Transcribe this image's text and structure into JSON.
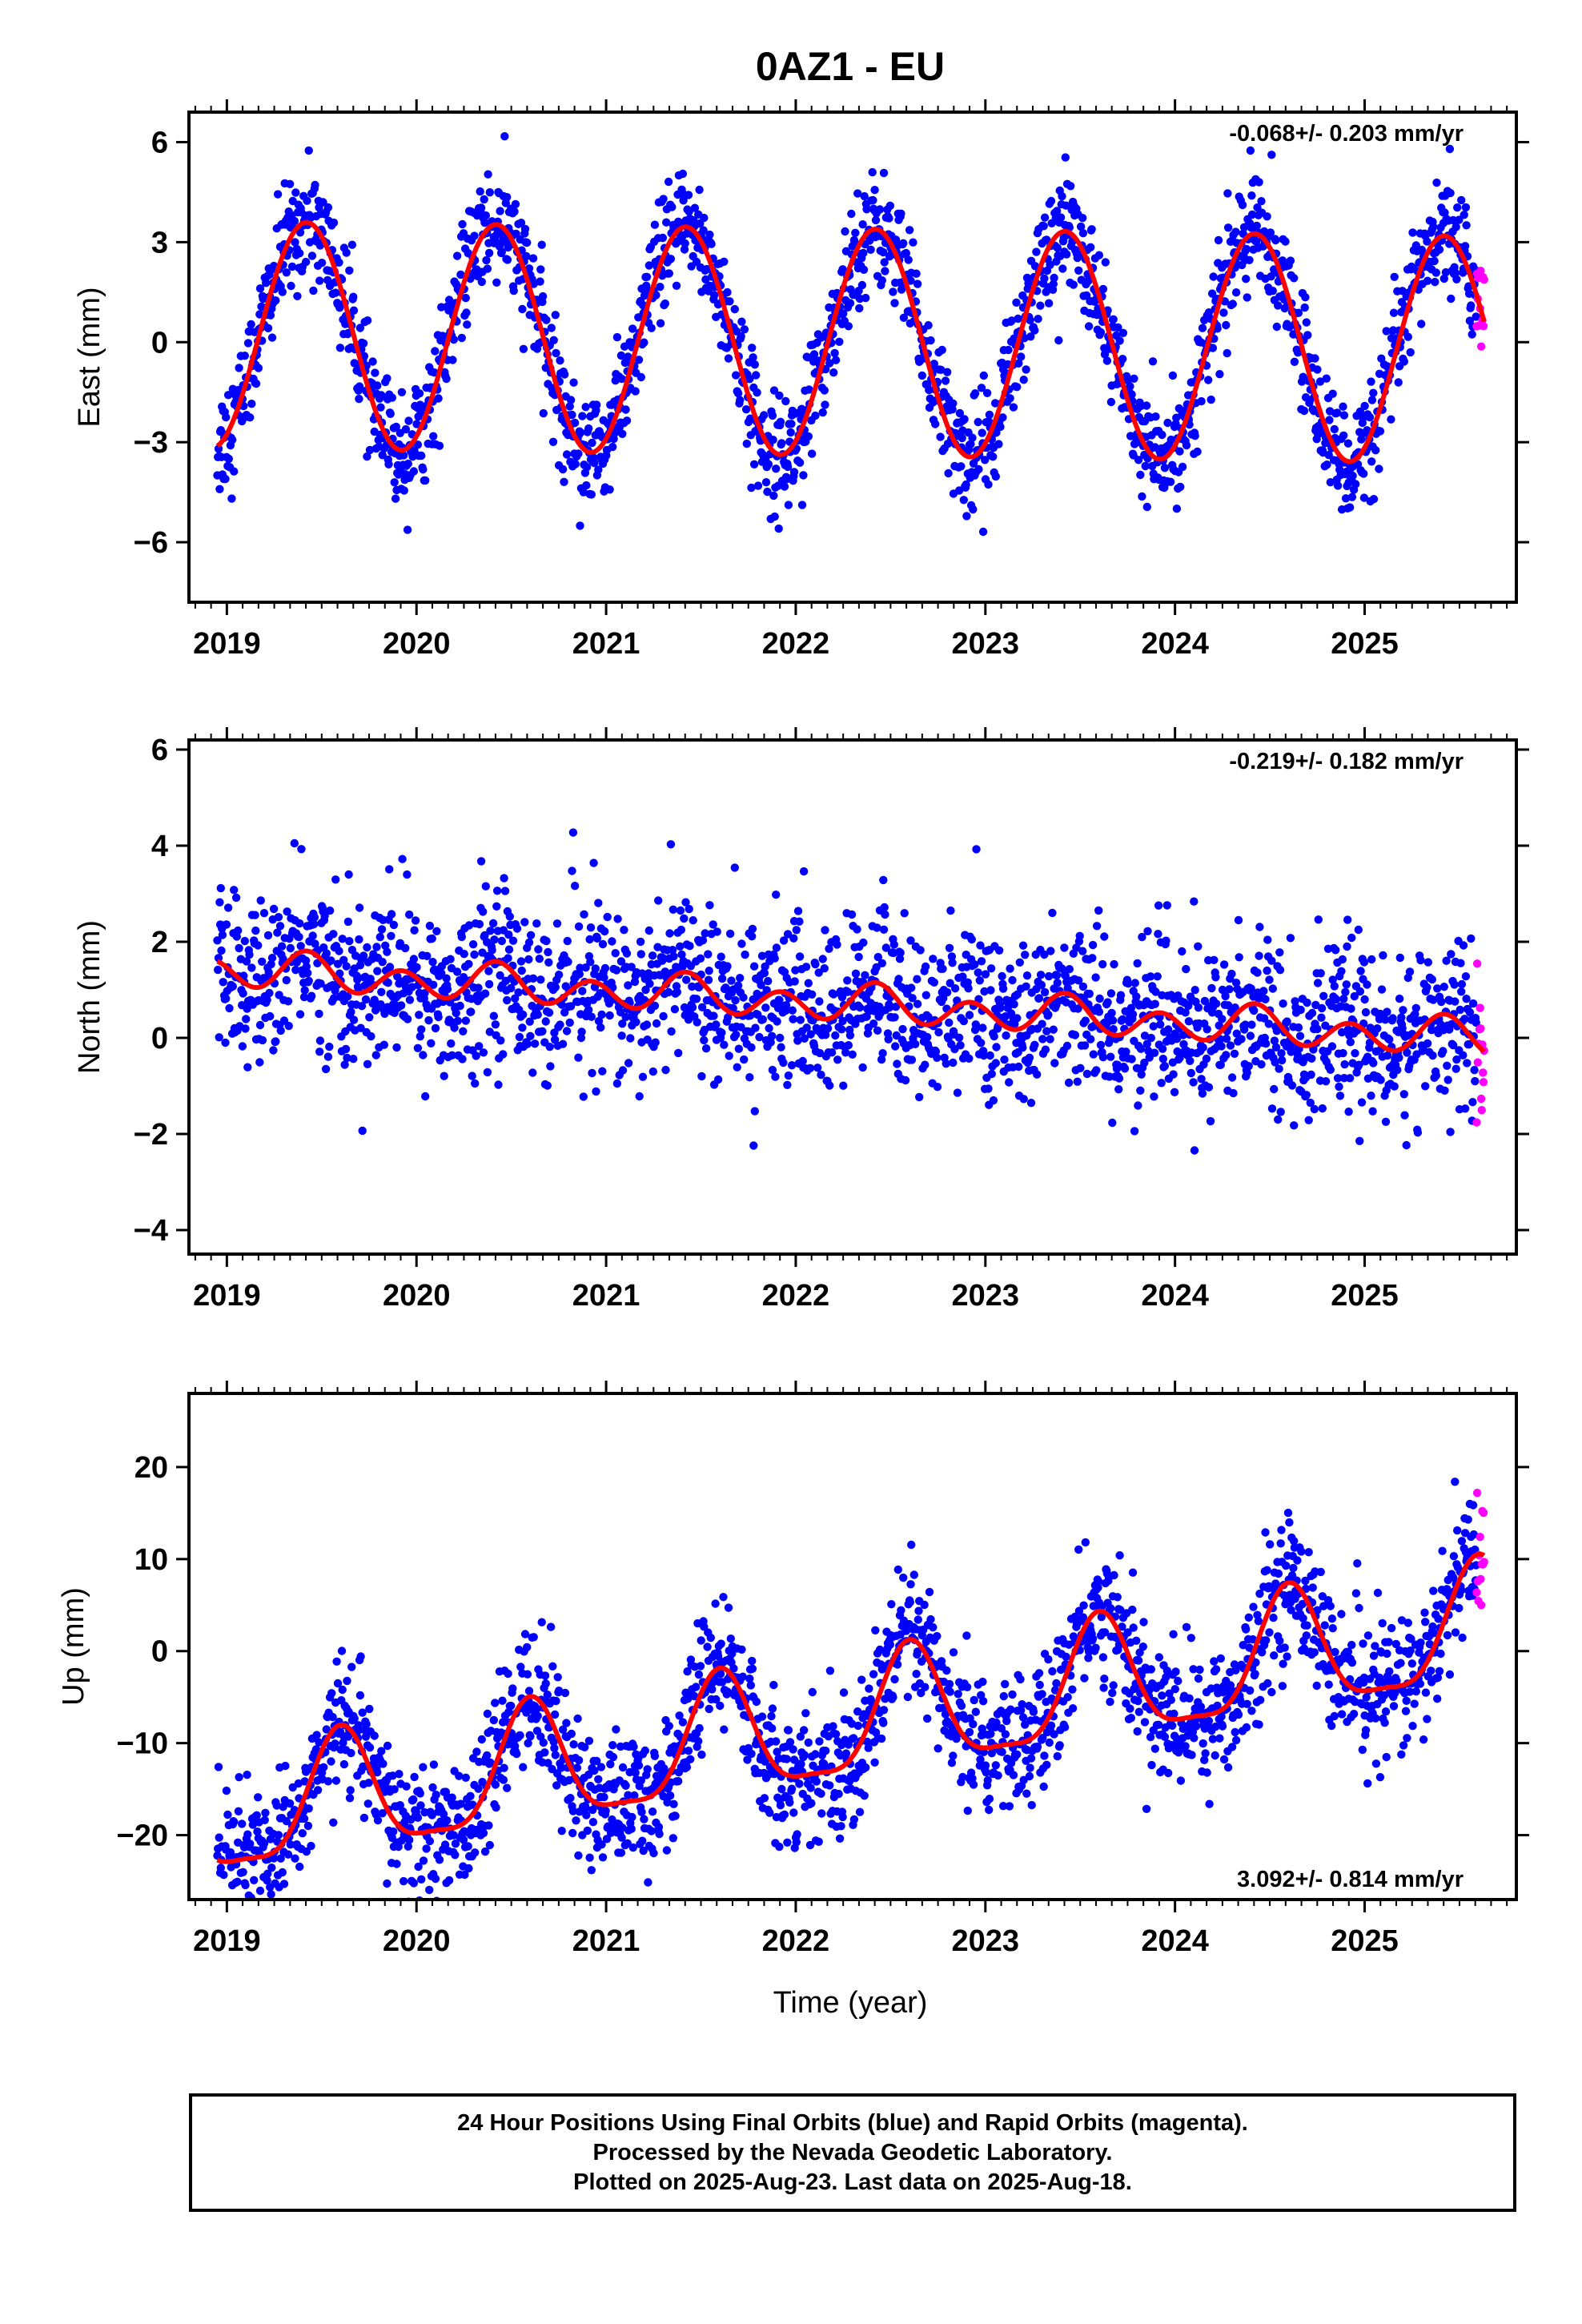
{
  "title": "0AZ1 - EU",
  "xlabel": "Time (year)",
  "colors": {
    "final": "#0000ff",
    "rapid": "#ff00ff",
    "model": "#ff0000"
  },
  "footer": {
    "line1": "24 Hour Positions Using Final Orbits (blue) and Rapid Orbits (magenta).",
    "line2": "Processed by the Nevada Geodetic Laboratory.",
    "line3": "Plotted on 2025-Aug-23. Last data on 2025-Aug-18."
  },
  "chart_data": [
    {
      "type": "scatter",
      "component": "east",
      "ylabel": "East (mm)",
      "rate_text": "-0.068+/- 0.203 mm/yr",
      "rate_position": "top-right",
      "xlim": [
        2018.8,
        2025.8
      ],
      "ylim": [
        -7.8,
        6.9
      ],
      "xticks": [
        2019,
        2020,
        2021,
        2022,
        2023,
        2024,
        2025
      ],
      "yticks": [
        -6,
        -3,
        0,
        3,
        6
      ],
      "data_start": 2018.95,
      "data_end": 2025.63,
      "rapid_start": 2025.59,
      "model": {
        "offset": 0.0,
        "trend": -0.068,
        "annual_amp": 3.4,
        "peak_year_fraction": 0.42,
        "semiannual_amp": 0.0
      },
      "scatter_sd": 0.85,
      "grid": false
    },
    {
      "type": "scatter",
      "component": "north",
      "ylabel": "North (mm)",
      "rate_text": "-0.219+/- 0.182 mm/yr",
      "rate_position": "top-right",
      "xlim": [
        2018.8,
        2025.8
      ],
      "ylim": [
        -4.5,
        6.2
      ],
      "xticks": [
        2019,
        2020,
        2021,
        2022,
        2023,
        2024,
        2025
      ],
      "yticks": [
        -4,
        -2,
        0,
        2,
        4,
        6
      ],
      "data_start": 2018.95,
      "data_end": 2025.63,
      "rapid_start": 2025.59,
      "model": {
        "offset": 0.7,
        "trend": -0.219,
        "annual_amp": 0.15,
        "peak_year_fraction": 0.42,
        "semiannual_amp": 0.33,
        "semiannual_peak_fraction": 0.42
      },
      "scatter_sd": 0.85,
      "grid": false
    },
    {
      "type": "scatter",
      "component": "up",
      "ylabel": "Up (mm)",
      "rate_text": "3.092+/- 0.814 mm/yr",
      "rate_position": "bottom-right",
      "xlim": [
        2018.8,
        2025.8
      ],
      "ylim": [
        -27,
        28
      ],
      "xticks": [
        2019,
        2020,
        2021,
        2022,
        2023,
        2024,
        2025
      ],
      "yticks": [
        -20,
        -10,
        0,
        10,
        20
      ],
      "data_start": 2018.95,
      "data_end": 2025.63,
      "rapid_start": 2025.59,
      "model": {
        "offset": -8.0,
        "trend": 3.092,
        "annual_amp": 6.5,
        "peak_year_fraction": 0.6,
        "semiannual_amp": 1.8,
        "semiannual_peak_fraction": 0.6
      },
      "scatter_sd": 3.6,
      "grid": false
    }
  ]
}
